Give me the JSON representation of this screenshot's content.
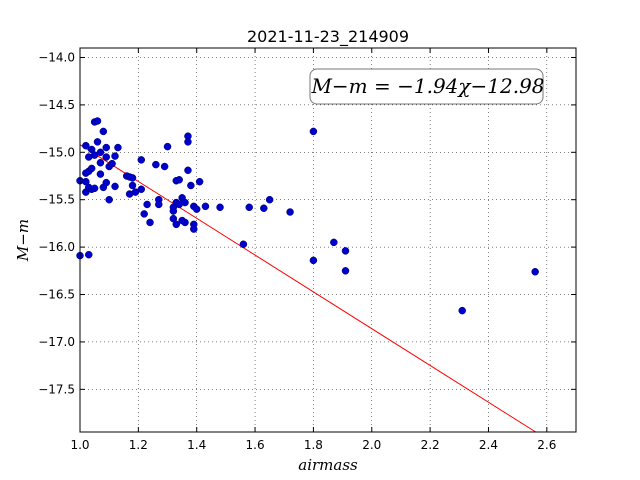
{
  "chart_data": {
    "type": "scatter",
    "title": "2021-11-23_214909",
    "xlabel": "airmass",
    "ylabel": "M−m",
    "xlim": [
      1.0,
      2.7
    ],
    "ylim": [
      -17.95,
      -13.9
    ],
    "x_ticks": [
      "1.0",
      "1.2",
      "1.4",
      "1.6",
      "1.8",
      "2.0",
      "2.2",
      "2.4",
      "2.6"
    ],
    "y_ticks": [
      "−14.0",
      "−14.5",
      "−15.0",
      "−15.5",
      "−16.0",
      "−16.5",
      "−17.0",
      "−17.5"
    ],
    "grid": true,
    "annotation": "M−m = −1.94χ−12.98",
    "colors": {
      "points": "#0000cc",
      "fit_line": "#ff0000"
    },
    "fit": {
      "slope": -1.94,
      "intercept": -12.98
    },
    "points": [
      [
        1.0,
        -15.3
      ],
      [
        1.0,
        -16.09
      ],
      [
        1.02,
        -14.93
      ],
      [
        1.02,
        -15.22
      ],
      [
        1.02,
        -15.31
      ],
      [
        1.02,
        -15.42
      ],
      [
        1.03,
        -15.37
      ],
      [
        1.03,
        -15.05
      ],
      [
        1.03,
        -15.2
      ],
      [
        1.03,
        -16.08
      ],
      [
        1.04,
        -14.97
      ],
      [
        1.04,
        -15.17
      ],
      [
        1.04,
        -15.39
      ],
      [
        1.05,
        -15.38
      ],
      [
        1.05,
        -15.03
      ],
      [
        1.05,
        -14.68
      ],
      [
        1.06,
        -14.67
      ],
      [
        1.06,
        -14.89
      ],
      [
        1.07,
        -15.0
      ],
      [
        1.07,
        -15.11
      ],
      [
        1.07,
        -15.23
      ],
      [
        1.08,
        -14.78
      ],
      [
        1.08,
        -15.37
      ],
      [
        1.09,
        -15.32
      ],
      [
        1.09,
        -14.95
      ],
      [
        1.09,
        -15.05
      ],
      [
        1.1,
        -15.5
      ],
      [
        1.1,
        -15.15
      ],
      [
        1.11,
        -15.12
      ],
      [
        1.12,
        -15.04
      ],
      [
        1.12,
        -15.36
      ],
      [
        1.13,
        -14.95
      ],
      [
        1.16,
        -15.25
      ],
      [
        1.17,
        -15.44
      ],
      [
        1.17,
        -15.26
      ],
      [
        1.18,
        -15.27
      ],
      [
        1.18,
        -15.35
      ],
      [
        1.19,
        -15.42
      ],
      [
        1.21,
        -15.39
      ],
      [
        1.21,
        -15.08
      ],
      [
        1.22,
        -15.65
      ],
      [
        1.23,
        -15.55
      ],
      [
        1.24,
        -15.74
      ],
      [
        1.26,
        -15.13
      ],
      [
        1.27,
        -15.5
      ],
      [
        1.27,
        -15.55
      ],
      [
        1.29,
        -15.15
      ],
      [
        1.3,
        -14.94
      ],
      [
        1.32,
        -15.58
      ],
      [
        1.32,
        -15.62
      ],
      [
        1.32,
        -15.7
      ],
      [
        1.33,
        -15.3
      ],
      [
        1.33,
        -15.53
      ],
      [
        1.33,
        -15.76
      ],
      [
        1.34,
        -15.29
      ],
      [
        1.34,
        -15.55
      ],
      [
        1.35,
        -15.72
      ],
      [
        1.35,
        -15.48
      ],
      [
        1.36,
        -15.53
      ],
      [
        1.36,
        -15.74
      ],
      [
        1.37,
        -14.83
      ],
      [
        1.37,
        -14.89
      ],
      [
        1.37,
        -15.19
      ],
      [
        1.38,
        -15.35
      ],
      [
        1.39,
        -15.76
      ],
      [
        1.39,
        -15.81
      ],
      [
        1.39,
        -15.57
      ],
      [
        1.4,
        -15.6
      ],
      [
        1.41,
        -15.31
      ],
      [
        1.43,
        -15.57
      ],
      [
        1.48,
        -15.58
      ],
      [
        1.56,
        -15.97
      ],
      [
        1.58,
        -15.58
      ],
      [
        1.63,
        -15.59
      ],
      [
        1.65,
        -15.5
      ],
      [
        1.72,
        -15.63
      ],
      [
        1.8,
        -14.78
      ],
      [
        1.8,
        -16.14
      ],
      [
        1.87,
        -15.95
      ],
      [
        1.91,
        -16.04
      ],
      [
        1.91,
        -16.25
      ],
      [
        2.31,
        -16.67
      ],
      [
        2.56,
        -16.26
      ]
    ]
  }
}
